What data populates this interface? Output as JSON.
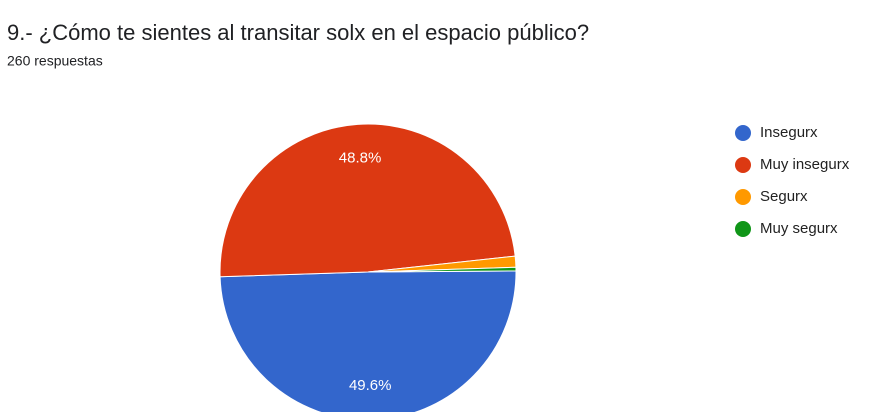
{
  "chart_data": {
    "type": "pie",
    "title": "9.- ¿Cómo te sientes al transitar solx en el espacio público?",
    "subtitle": "260 respuestas",
    "categories": [
      "Insegurx",
      "Muy insegurx",
      "Segurx",
      "Muy segurx"
    ],
    "values": [
      49.6,
      48.8,
      1.2,
      0.4
    ],
    "value_labels": [
      "49.6%",
      "48.8%",
      null,
      null
    ],
    "colors": [
      "#3366cc",
      "#dc3912",
      "#ff9900",
      "#109618"
    ],
    "legend": "right"
  }
}
